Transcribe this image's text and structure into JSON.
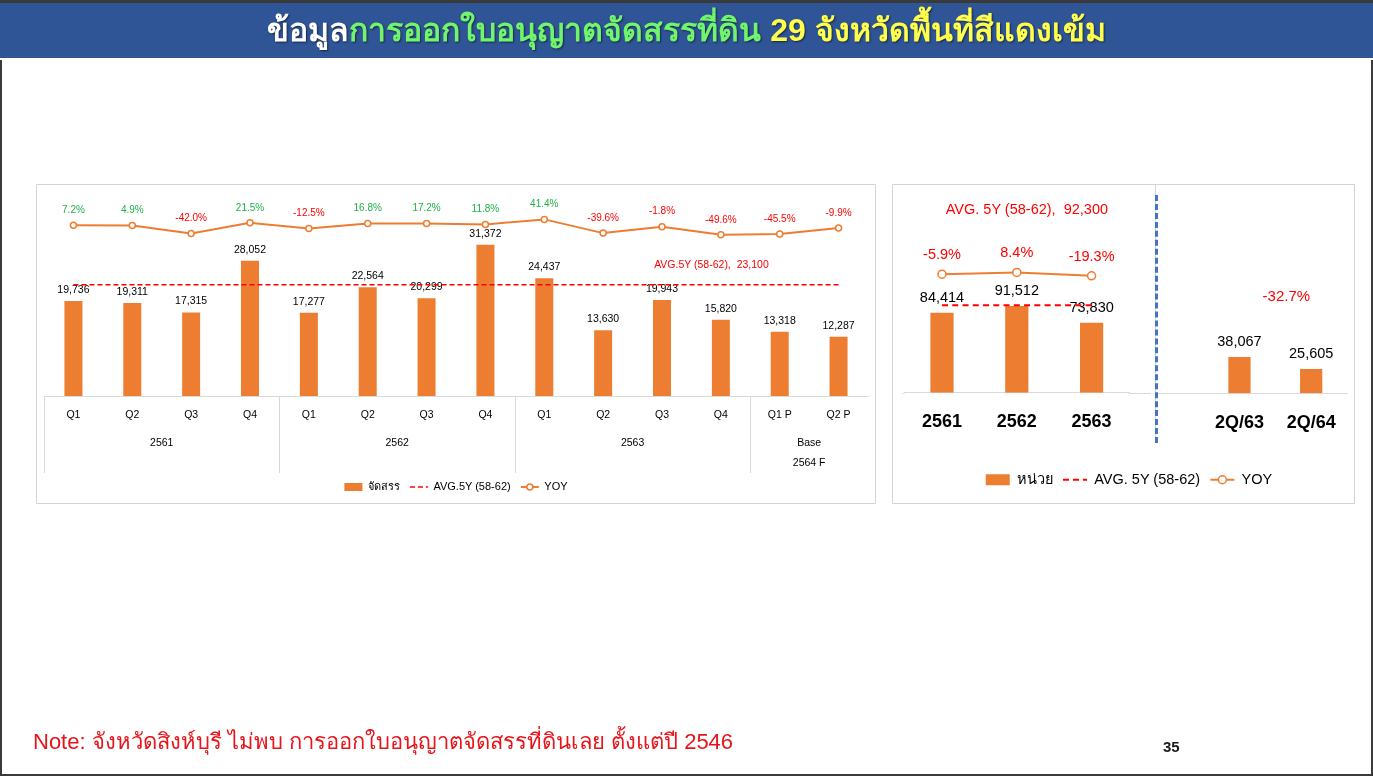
{
  "chart_data": [
    {
      "type": "other",
      "title": "ข้อมูลการออกใบอนุญาตจัดสรรที่ดิน 29 จังหวัดพื้นที่สีแดงเข้ม"
    },
    {
      "type": "bar",
      "categories": [
        "Q1",
        "Q2",
        "Q3",
        "Q4",
        "Q1",
        "Q2",
        "Q3",
        "Q4",
        "Q1",
        "Q2",
        "Q3",
        "Q4",
        "Q1 P",
        "Q2 P"
      ],
      "ylim": [
        0,
        44000
      ],
      "y2lim": [
        -1000,
        250
      ],
      "tick_labels": "x",
      "legend": "bottom",
      "annotations": [
        "2561",
        "2562",
        "2563",
        "Base\n2564 F",
        {
          "text": "AVG.5Y (58-62),  23,100",
          "y": 23100
        }
      ],
      "series": [
        {
          "name": "จัดสรร",
          "type": "bar",
          "color": "#ed7d31",
          "values": [
            19736,
            19311,
            17315,
            28052,
            17277,
            22564,
            20299,
            31372,
            24437,
            13630,
            19943,
            15820,
            13318,
            12287
          ],
          "value_labels": [
            "19,736",
            "19,311",
            "17,315",
            "28,052",
            "17,277",
            "22,564",
            "20,299",
            "31,372",
            "24,437",
            "13,630",
            "19,943",
            "15,820",
            "13,318",
            "12,287"
          ]
        },
        {
          "name": "AVG.5Y (58-62)",
          "type": "line",
          "color": "#ff0000",
          "line_style": "dashed",
          "marker": "none",
          "values": [
            23100,
            23100,
            23100,
            23100,
            23100,
            23100,
            23100,
            23100,
            23100,
            23100,
            23100,
            23100,
            23100,
            23100
          ]
        },
        {
          "name": "YOY",
          "type": "line",
          "axis": "y2",
          "color": "#ed7d31",
          "marker": "circle",
          "values": [
            7.2,
            4.9,
            -42.0,
            21.5,
            -12.5,
            16.8,
            17.2,
            11.8,
            41.4,
            -39.6,
            -1.8,
            -49.6,
            -45.5,
            -9.9
          ],
          "value_labels": [
            "7.2%",
            "4.9%",
            "-42.0%",
            "21.5%",
            "-12.5%",
            "16.8%",
            "17.2%",
            "11.8%",
            "41.4%",
            "-39.6%",
            "-1.8%",
            "-49.6%",
            "-45.5%",
            "-9.9%"
          ]
        }
      ]
    },
    {
      "type": "bar",
      "categories": [
        "2561",
        "2562",
        "2563"
      ],
      "ylim": [
        0,
        220000
      ],
      "y2lim": [
        -1000,
        750
      ],
      "tick_labels": "x",
      "legend": "bottom",
      "annotations": [
        "AVG. 5Y (58-62),  92,300"
      ],
      "series": [
        {
          "name": "หน่วย",
          "type": "bar",
          "color": "#ed7d31",
          "values": [
            84414,
            91512,
            73830
          ],
          "value_labels": [
            "84,414",
            "91,512",
            "73,830"
          ]
        },
        {
          "name": "AVG. 5Y (58-62)",
          "type": "line",
          "color": "#ff0000",
          "line_style": "dashed",
          "marker": "none",
          "values": [
            92300,
            92300,
            92300
          ]
        },
        {
          "name": "YOY",
          "type": "line",
          "axis": "y2",
          "color": "#ed7d31",
          "marker": "circle",
          "values": [
            -5.9,
            8.4,
            -19.3
          ],
          "value_labels": [
            "-5.9%",
            "8.4%",
            "-19.3%"
          ]
        }
      ]
    },
    {
      "type": "bar",
      "categories": [
        "2Q/63",
        "2Q/64"
      ],
      "ylim": [
        0,
        220000
      ],
      "tick_labels": "x",
      "annotations": [
        "-32.7%"
      ],
      "color": "#ed7d31",
      "values": [
        38067,
        25605
      ],
      "value_labels": [
        "38,067",
        "25,605"
      ]
    },
    {
      "type": "other",
      "annotations": [
        "Note: จังหวัดสิงห์บุรี ไม่พบ การออกใบอนุญาตจัดสรรที่ดินเลย ตั้งแต่ปี 2546",
        "35"
      ]
    }
  ]
}
